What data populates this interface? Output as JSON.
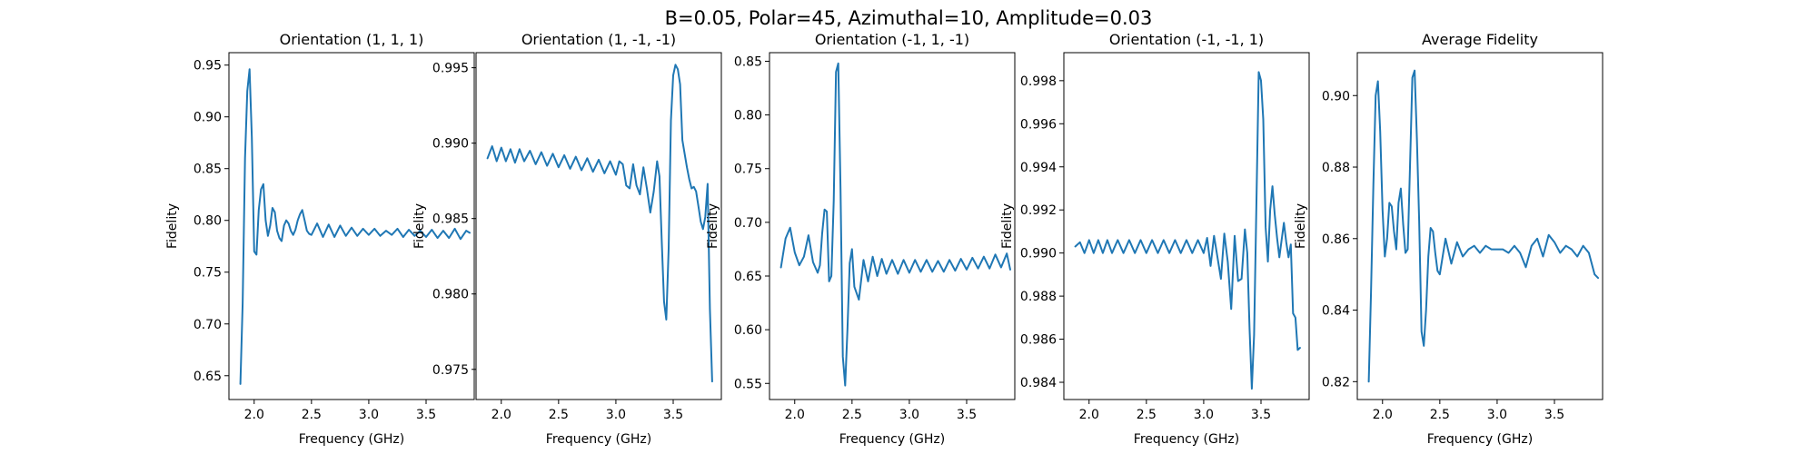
{
  "figure": {
    "suptitle": "B=0.05, Polar=45, Azimuthal=10, Amplitude=0.03"
  },
  "chart_data": [
    {
      "type": "line",
      "title": "Orientation (1, 1, 1)",
      "xlabel": "Frequency (GHz)",
      "ylabel": "Fidelity",
      "xlim": [
        1.78,
        3.92
      ],
      "ylim": [
        0.627,
        0.962
      ],
      "xticks": [
        "2.0",
        "2.5",
        "3.0",
        "3.5"
      ],
      "yticks": [
        "0.65",
        "0.70",
        "0.75",
        "0.80",
        "0.85",
        "0.90",
        "0.95"
      ],
      "grid": false,
      "x": [
        1.88,
        1.9,
        1.92,
        1.94,
        1.96,
        1.98,
        2.0,
        2.02,
        2.04,
        2.06,
        2.08,
        2.1,
        2.12,
        2.14,
        2.16,
        2.18,
        2.2,
        2.22,
        2.24,
        2.26,
        2.28,
        2.3,
        2.32,
        2.34,
        2.36,
        2.38,
        2.4,
        2.42,
        2.44,
        2.46,
        2.48,
        2.5,
        2.55,
        2.6,
        2.65,
        2.7,
        2.75,
        2.8,
        2.85,
        2.9,
        2.95,
        3.0,
        3.05,
        3.1,
        3.15,
        3.2,
        3.25,
        3.3,
        3.35,
        3.4,
        3.45,
        3.5,
        3.55,
        3.6,
        3.65,
        3.7,
        3.75,
        3.8,
        3.85,
        3.88
      ],
      "values": [
        0.642,
        0.72,
        0.86,
        0.925,
        0.946,
        0.88,
        0.77,
        0.767,
        0.81,
        0.83,
        0.835,
        0.8,
        0.785,
        0.795,
        0.812,
        0.808,
        0.79,
        0.783,
        0.78,
        0.795,
        0.8,
        0.797,
        0.79,
        0.786,
        0.791,
        0.8,
        0.806,
        0.81,
        0.8,
        0.79,
        0.787,
        0.786,
        0.797,
        0.784,
        0.796,
        0.784,
        0.795,
        0.785,
        0.793,
        0.785,
        0.792,
        0.786,
        0.792,
        0.785,
        0.79,
        0.786,
        0.792,
        0.784,
        0.791,
        0.785,
        0.79,
        0.784,
        0.791,
        0.783,
        0.79,
        0.783,
        0.792,
        0.782,
        0.79,
        0.788
      ]
    },
    {
      "type": "line",
      "title": "Orientation (1, -1, -1)",
      "xlabel": "Frequency (GHz)",
      "ylabel": "Fidelity",
      "xlim": [
        1.78,
        3.92
      ],
      "ylim": [
        0.973,
        0.996
      ],
      "xticks": [
        "2.0",
        "2.5",
        "3.0",
        "3.5"
      ],
      "yticks": [
        "0.975",
        "0.980",
        "0.985",
        "0.990",
        "0.995"
      ],
      "grid": false,
      "x": [
        1.88,
        1.92,
        1.96,
        2.0,
        2.04,
        2.08,
        2.12,
        2.16,
        2.2,
        2.25,
        2.3,
        2.35,
        2.4,
        2.45,
        2.5,
        2.55,
        2.6,
        2.65,
        2.7,
        2.75,
        2.8,
        2.85,
        2.9,
        2.95,
        3.0,
        3.03,
        3.06,
        3.09,
        3.12,
        3.15,
        3.18,
        3.21,
        3.24,
        3.27,
        3.3,
        3.33,
        3.36,
        3.38,
        3.4,
        3.42,
        3.44,
        3.46,
        3.48,
        3.5,
        3.52,
        3.54,
        3.56,
        3.58,
        3.6,
        3.62,
        3.64,
        3.66,
        3.68,
        3.7,
        3.72,
        3.74,
        3.76,
        3.78,
        3.8,
        3.82,
        3.84
      ],
      "values": [
        0.989,
        0.9898,
        0.9888,
        0.9897,
        0.9888,
        0.9896,
        0.9887,
        0.9896,
        0.9888,
        0.9895,
        0.9886,
        0.9894,
        0.9885,
        0.9893,
        0.9884,
        0.9892,
        0.9883,
        0.9891,
        0.9882,
        0.989,
        0.9881,
        0.9889,
        0.988,
        0.9888,
        0.9879,
        0.9888,
        0.9886,
        0.9872,
        0.987,
        0.9886,
        0.9872,
        0.9866,
        0.9884,
        0.987,
        0.9854,
        0.9868,
        0.9888,
        0.9878,
        0.9835,
        0.9795,
        0.9783,
        0.983,
        0.9915,
        0.9945,
        0.9952,
        0.9949,
        0.9939,
        0.9902,
        0.9893,
        0.9884,
        0.9876,
        0.987,
        0.9871,
        0.9868,
        0.9858,
        0.9848,
        0.9843,
        0.9851,
        0.9873,
        0.979,
        0.9742
      ]
    },
    {
      "type": "line",
      "title": "Orientation (-1, 1, -1)",
      "xlabel": "Frequency (GHz)",
      "ylabel": "Fidelity",
      "xlim": [
        1.78,
        3.92
      ],
      "ylim": [
        0.535,
        0.858
      ],
      "xticks": [
        "2.0",
        "2.5",
        "3.0",
        "3.5"
      ],
      "yticks": [
        "0.55",
        "0.60",
        "0.65",
        "0.70",
        "0.75",
        "0.80",
        "0.85"
      ],
      "grid": false,
      "x": [
        1.88,
        1.92,
        1.96,
        2.0,
        2.04,
        2.08,
        2.12,
        2.16,
        2.2,
        2.22,
        2.24,
        2.26,
        2.28,
        2.3,
        2.32,
        2.34,
        2.36,
        2.38,
        2.4,
        2.42,
        2.44,
        2.46,
        2.48,
        2.5,
        2.52,
        2.56,
        2.6,
        2.64,
        2.68,
        2.72,
        2.76,
        2.8,
        2.85,
        2.9,
        2.95,
        3.0,
        3.05,
        3.1,
        3.15,
        3.2,
        3.25,
        3.3,
        3.35,
        3.4,
        3.45,
        3.5,
        3.55,
        3.6,
        3.65,
        3.7,
        3.75,
        3.8,
        3.85,
        3.88
      ],
      "values": [
        0.658,
        0.685,
        0.695,
        0.672,
        0.66,
        0.668,
        0.688,
        0.663,
        0.653,
        0.66,
        0.69,
        0.712,
        0.71,
        0.645,
        0.65,
        0.72,
        0.84,
        0.848,
        0.73,
        0.575,
        0.548,
        0.6,
        0.662,
        0.675,
        0.64,
        0.628,
        0.665,
        0.645,
        0.668,
        0.65,
        0.666,
        0.652,
        0.665,
        0.652,
        0.665,
        0.653,
        0.665,
        0.654,
        0.665,
        0.654,
        0.664,
        0.654,
        0.665,
        0.655,
        0.666,
        0.656,
        0.667,
        0.657,
        0.668,
        0.657,
        0.67,
        0.658,
        0.671,
        0.656
      ]
    },
    {
      "type": "line",
      "title": "Orientation (-1, -1, 1)",
      "xlabel": "Frequency (GHz)",
      "ylabel": "Fidelity",
      "xlim": [
        1.78,
        3.92
      ],
      "ylim": [
        0.9832,
        0.9993
      ],
      "xticks": [
        "2.0",
        "2.5",
        "3.0",
        "3.5"
      ],
      "yticks": [
        "0.984",
        "0.986",
        "0.988",
        "0.990",
        "0.992",
        "0.994",
        "0.996",
        "0.998"
      ],
      "grid": false,
      "x": [
        1.88,
        1.92,
        1.96,
        2.0,
        2.04,
        2.08,
        2.12,
        2.16,
        2.2,
        2.25,
        2.3,
        2.35,
        2.4,
        2.45,
        2.5,
        2.55,
        2.6,
        2.65,
        2.7,
        2.75,
        2.8,
        2.85,
        2.9,
        2.95,
        3.0,
        3.03,
        3.06,
        3.09,
        3.12,
        3.15,
        3.18,
        3.21,
        3.24,
        3.27,
        3.3,
        3.33,
        3.36,
        3.38,
        3.4,
        3.42,
        3.44,
        3.46,
        3.48,
        3.5,
        3.52,
        3.54,
        3.56,
        3.58,
        3.6,
        3.62,
        3.64,
        3.66,
        3.68,
        3.7,
        3.72,
        3.74,
        3.76,
        3.78,
        3.8,
        3.82,
        3.84
      ],
      "values": [
        0.9903,
        0.9905,
        0.99,
        0.9906,
        0.99,
        0.9906,
        0.99,
        0.9906,
        0.99,
        0.9906,
        0.99,
        0.9906,
        0.99,
        0.9906,
        0.99,
        0.9906,
        0.99,
        0.9906,
        0.99,
        0.9906,
        0.99,
        0.9906,
        0.99,
        0.9906,
        0.99,
        0.9907,
        0.9894,
        0.9908,
        0.9898,
        0.9888,
        0.9909,
        0.9896,
        0.9874,
        0.9908,
        0.9887,
        0.9888,
        0.9911,
        0.99,
        0.9865,
        0.9837,
        0.9862,
        0.9924,
        0.9984,
        0.998,
        0.9962,
        0.9912,
        0.9896,
        0.992,
        0.9931,
        0.9918,
        0.9907,
        0.9898,
        0.9906,
        0.9914,
        0.9905,
        0.9898,
        0.9904,
        0.9872,
        0.987,
        0.9855,
        0.9856
      ]
    },
    {
      "type": "line",
      "title": "Average Fidelity",
      "xlabel": "Frequency (GHz)",
      "ylabel": "Fidelity",
      "xlim": [
        1.78,
        3.92
      ],
      "ylim": [
        0.815,
        0.912
      ],
      "xticks": [
        "2.0",
        "2.5",
        "3.0",
        "3.5"
      ],
      "yticks": [
        "0.82",
        "0.84",
        "0.86",
        "0.88",
        "0.90"
      ],
      "grid": false,
      "x": [
        1.88,
        1.9,
        1.92,
        1.94,
        1.96,
        1.98,
        2.0,
        2.02,
        2.04,
        2.06,
        2.08,
        2.1,
        2.12,
        2.14,
        2.16,
        2.18,
        2.2,
        2.22,
        2.24,
        2.26,
        2.28,
        2.3,
        2.32,
        2.34,
        2.36,
        2.38,
        2.4,
        2.42,
        2.44,
        2.46,
        2.48,
        2.5,
        2.55,
        2.6,
        2.65,
        2.7,
        2.75,
        2.8,
        2.85,
        2.9,
        2.95,
        3.0,
        3.05,
        3.1,
        3.15,
        3.2,
        3.25,
        3.3,
        3.35,
        3.4,
        3.45,
        3.5,
        3.55,
        3.6,
        3.65,
        3.7,
        3.75,
        3.8,
        3.85,
        3.88
      ],
      "values": [
        0.82,
        0.845,
        0.875,
        0.9,
        0.904,
        0.89,
        0.868,
        0.855,
        0.86,
        0.87,
        0.869,
        0.862,
        0.857,
        0.87,
        0.874,
        0.864,
        0.856,
        0.857,
        0.88,
        0.905,
        0.907,
        0.888,
        0.865,
        0.834,
        0.83,
        0.84,
        0.855,
        0.863,
        0.862,
        0.856,
        0.851,
        0.85,
        0.86,
        0.853,
        0.859,
        0.855,
        0.857,
        0.858,
        0.856,
        0.858,
        0.857,
        0.857,
        0.857,
        0.856,
        0.858,
        0.856,
        0.852,
        0.858,
        0.86,
        0.855,
        0.861,
        0.859,
        0.856,
        0.858,
        0.857,
        0.855,
        0.858,
        0.856,
        0.85,
        0.849
      ]
    }
  ]
}
